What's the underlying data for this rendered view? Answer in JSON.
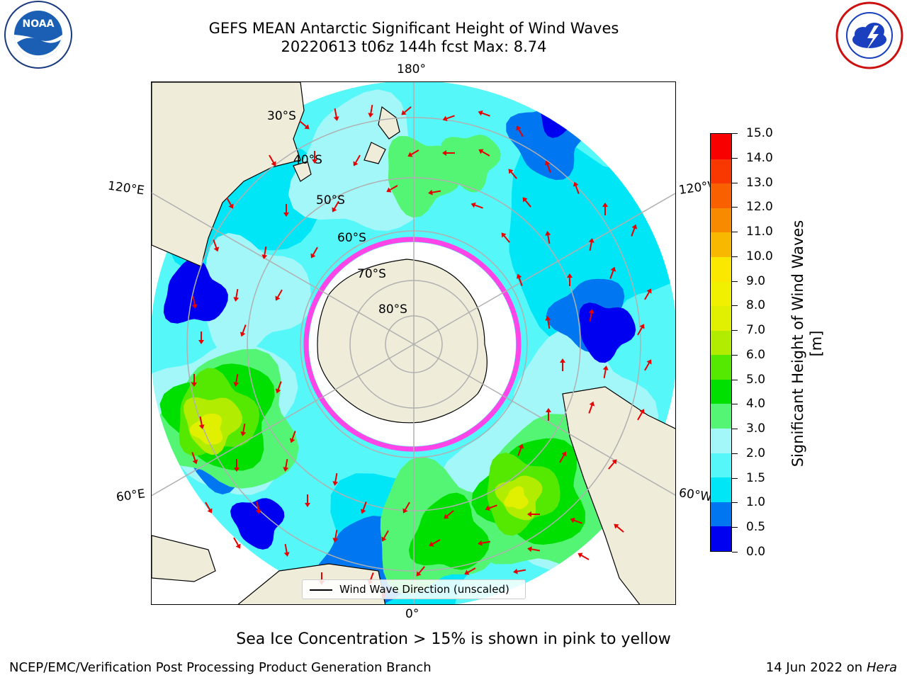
{
  "title": {
    "line1": "GEFS MEAN Antarctic Significant Height of Wind Waves",
    "line2": "20220613 t06z 144h fcst   Max: 8.74"
  },
  "logos": {
    "left": "NOAA",
    "right": "NATIONAL WEATHER SERVICE"
  },
  "map": {
    "projection": "south-polar-stereographic",
    "longitude_labels": {
      "top": "180°",
      "upper_left": "120°E",
      "upper_right": "120°W",
      "lower_left": "60°E",
      "lower_right": "60°W",
      "bottom": "0°"
    },
    "latitude_labels": [
      "30°S",
      "40°S",
      "50°S",
      "60°S",
      "70°S",
      "80°S"
    ],
    "colors": {
      "land": "#efedda",
      "ice_free_ocean": "#ffffff",
      "sea_ice_edge": "#ff44e8",
      "arrow": "#e60000",
      "grid": "#b0b0b0"
    }
  },
  "legend": {
    "label": "Wind Wave Direction (unscaled)"
  },
  "colorbar": {
    "title": "Significant Height of Wind Waves [m]",
    "ticks": [
      "0.0",
      "0.5",
      "1.0",
      "1.5",
      "2.0",
      "3.0",
      "4.0",
      "5.0",
      "6.0",
      "7.0",
      "8.0",
      "9.0",
      "10.0",
      "11.0",
      "12.0",
      "13.0",
      "14.0",
      "15.0"
    ],
    "colors": [
      "#0000f0",
      "#0077f0",
      "#00e6f7",
      "#55f7f9",
      "#a3f7f9",
      "#54f574",
      "#00e000",
      "#55e800",
      "#b2ec00",
      "#e0f000",
      "#f0f000",
      "#fae800",
      "#f8b800",
      "#f88a00",
      "#f86000",
      "#f83800",
      "#f80000"
    ]
  },
  "note": "Sea Ice Concentration > 15% is shown in pink to yellow",
  "credit": {
    "left": "NCEP/EMC/Verification Post Processing Product Generation Branch",
    "right_date": "14 Jun 2022 on",
    "right_machine": "Hera"
  }
}
